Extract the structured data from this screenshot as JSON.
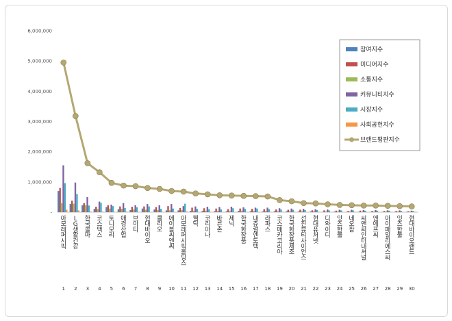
{
  "chart_data": {
    "type": "bar",
    "title": "",
    "xlabel": "",
    "ylabel": "",
    "ylim": [
      0,
      6000000
    ],
    "yticks": [
      "-",
      "1,000,000",
      "2,000,000",
      "3,000,000",
      "4,000,000",
      "5,000,000",
      "6,000,000"
    ],
    "grid": false,
    "legend_position": "top-right",
    "ranks": [
      "1",
      "2",
      "3",
      "4",
      "5",
      "6",
      "7",
      "8",
      "9",
      "10",
      "11",
      "12",
      "13",
      "14",
      "15",
      "16",
      "17",
      "18",
      "19",
      "20",
      "21",
      "22",
      "23",
      "24",
      "25",
      "26",
      "27",
      "28",
      "29",
      "30"
    ],
    "categories": [
      "아모레퍼시픽",
      "LG생활건강",
      "한국콜마",
      "코스맥스",
      "토니모리",
      "애경산업",
      "브이티",
      "현대바이오",
      "클리오",
      "에이블씨엔씨",
      "아모레퍼시픽홀딩스",
      "웰딕",
      "코리아나",
      "바른손",
      "제닉",
      "한국화장품",
      "내츄럴엔도텍",
      "라파스",
      "코스메카코리아",
      "한국화장품제조",
      "선진뷰티사이언스",
      "현대퓨처넷",
      "디와이디",
      "잇츠한불",
      "네오팜",
      "씨앤씨인터내셔널",
      "엔에프씨",
      "아이패밀리에스씨",
      "잇츠한불",
      "현대바이오랜드"
    ],
    "series": [
      {
        "name": "참여지수",
        "type": "bar",
        "color": "#4f81bd",
        "values": [
          700000,
          270000,
          230000,
          110000,
          170000,
          100000,
          70000,
          120000,
          90000,
          60000,
          60000,
          40000,
          40000,
          30000,
          30000,
          40000,
          30000,
          20000,
          30000,
          30000,
          20000,
          20000,
          10000,
          20000,
          10000,
          10000,
          10000,
          10000,
          10000,
          10000
        ]
      },
      {
        "name": "미디어지수",
        "type": "bar",
        "color": "#c0504d",
        "values": [
          800000,
          380000,
          300000,
          180000,
          230000,
          190000,
          180000,
          190000,
          170000,
          200000,
          140000,
          150000,
          130000,
          120000,
          100000,
          120000,
          110000,
          100000,
          90000,
          80000,
          80000,
          60000,
          60000,
          50000,
          40000,
          50000,
          40000,
          40000,
          40000,
          30000
        ]
      },
      {
        "name": "소통지수",
        "type": "bar",
        "color": "#9bbb59",
        "values": [
          300000,
          280000,
          230000,
          100000,
          120000,
          110000,
          90000,
          80000,
          70000,
          60000,
          70000,
          50000,
          50000,
          40000,
          40000,
          50000,
          40000,
          40000,
          30000,
          30000,
          30000,
          30000,
          20000,
          20000,
          20000,
          20000,
          20000,
          20000,
          20000,
          20000
        ]
      },
      {
        "name": "커뮤니티지수",
        "type": "bar",
        "color": "#8064a2",
        "values": [
          1550000,
          980000,
          500000,
          350000,
          250000,
          300000,
          230000,
          270000,
          230000,
          270000,
          200000,
          190000,
          180000,
          170000,
          180000,
          160000,
          150000,
          150000,
          130000,
          120000,
          110000,
          100000,
          90000,
          80000,
          80000,
          70000,
          70000,
          60000,
          60000,
          50000
        ]
      },
      {
        "name": "시장지수",
        "type": "bar",
        "color": "#4bacc6",
        "values": [
          960000,
          600000,
          220000,
          310000,
          200000,
          140000,
          160000,
          190000,
          110000,
          120000,
          280000,
          110000,
          100000,
          90000,
          130000,
          110000,
          120000,
          100000,
          90000,
          80000,
          70000,
          70000,
          60000,
          60000,
          60000,
          50000,
          50000,
          50000,
          40000,
          40000
        ]
      },
      {
        "name": "사회공헌지수",
        "type": "bar",
        "color": "#f79646",
        "values": [
          80000,
          60000,
          20000,
          20000,
          10000,
          20000,
          10000,
          10000,
          10000,
          10000,
          20000,
          10000,
          10000,
          10000,
          10000,
          10000,
          10000,
          10000,
          10000,
          10000,
          10000,
          10000,
          10000,
          10000,
          10000,
          10000,
          10000,
          10000,
          10000,
          10000
        ]
      },
      {
        "name": "브랜드평판지수",
        "type": "line",
        "color": "#b4a773",
        "values": [
          4950000,
          3180000,
          1620000,
          1320000,
          970000,
          880000,
          860000,
          800000,
          770000,
          700000,
          680000,
          620000,
          590000,
          560000,
          550000,
          540000,
          530000,
          520000,
          400000,
          360000,
          300000,
          290000,
          260000,
          240000,
          230000,
          220000,
          220000,
          210000,
          200000,
          190000
        ]
      }
    ]
  }
}
